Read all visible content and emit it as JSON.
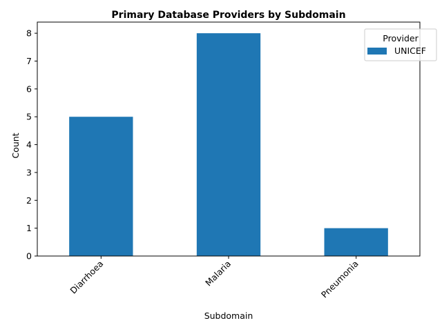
{
  "chart_data": {
    "type": "bar",
    "title": "Primary Database Providers by Subdomain",
    "xlabel": "Subdomain",
    "ylabel": "Count",
    "categories": [
      "Diarrhoea",
      "Malaria",
      "Pneumonia"
    ],
    "series": [
      {
        "name": "UNICEF",
        "values": [
          5,
          8,
          1
        ],
        "color": "#1f77b4"
      }
    ],
    "ylim": [
      0,
      8.4
    ],
    "yticks": [
      0,
      1,
      2,
      3,
      4,
      5,
      6,
      7,
      8
    ],
    "xtick_rotation": 45,
    "grid": false,
    "legend": {
      "title": "Provider",
      "placement": "top-right"
    }
  }
}
